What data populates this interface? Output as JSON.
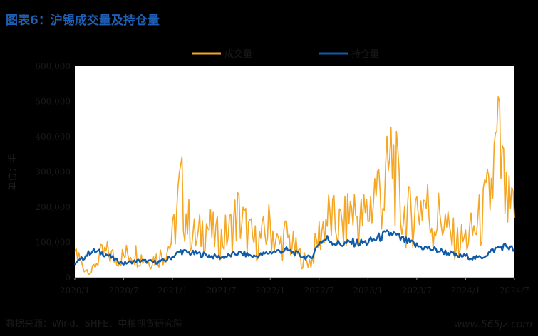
{
  "header": {
    "title": "图表6：沪锡成交量及持仓量"
  },
  "footer": {
    "source": "数据来源：Wind、SHFE、中粮期货研究院",
    "watermark": "www.565jz.com"
  },
  "colors": {
    "volume": "#F5A623",
    "open_interest": "#0F5BAA",
    "title": "#1F5FB4"
  },
  "chart_data": {
    "type": "line",
    "ylabel": "单位：手",
    "ylim": [
      0,
      600000
    ],
    "yticks": [
      "0",
      "100,000",
      "200,000",
      "300,000",
      "400,000",
      "500,000",
      "600,000"
    ],
    "xlim": [
      "2020/1",
      "2024/7"
    ],
    "xticks": [
      "2020/1",
      "2020/7",
      "2021/1",
      "2021/7",
      "2022/1",
      "2022/7",
      "2023/1",
      "2023/7",
      "2024/1",
      "2024/7"
    ],
    "legend_position": "top-center",
    "grid": false,
    "series": [
      {
        "name": "成交量",
        "color": "#F5A623",
        "points": [
          [
            "2020/1",
            80000
          ],
          [
            "2020/2",
            30000
          ],
          [
            "2020/3",
            15000
          ],
          [
            "2020/4",
            60000
          ],
          [
            "2020/5",
            70000
          ],
          [
            "2020/6",
            55000
          ],
          [
            "2020/7",
            60000
          ],
          [
            "2020/8",
            75000
          ],
          [
            "2020/9",
            60000
          ],
          [
            "2020/10",
            50000
          ],
          [
            "2020/11",
            55000
          ],
          [
            "2020/12",
            70000
          ],
          [
            "2021/1",
            110000
          ],
          [
            "2021/2",
            250000
          ],
          [
            "2021/3",
            150000
          ],
          [
            "2021/4",
            100000
          ],
          [
            "2021/5",
            160000
          ],
          [
            "2021/6",
            120000
          ],
          [
            "2021/7",
            110000
          ],
          [
            "2021/8",
            130000
          ],
          [
            "2021/9",
            180000
          ],
          [
            "2021/10",
            140000
          ],
          [
            "2021/11",
            100000
          ],
          [
            "2021/12",
            110000
          ],
          [
            "2022/1",
            150000
          ],
          [
            "2022/2",
            90000
          ],
          [
            "2022/3",
            120000
          ],
          [
            "2022/4",
            80000
          ],
          [
            "2022/5",
            50000
          ],
          [
            "2022/6",
            45000
          ],
          [
            "2022/7",
            120000
          ],
          [
            "2022/8",
            170000
          ],
          [
            "2022/9",
            150000
          ],
          [
            "2022/10",
            140000
          ],
          [
            "2022/11",
            200000
          ],
          [
            "2022/12",
            160000
          ],
          [
            "2023/1",
            180000
          ],
          [
            "2023/2",
            260000
          ],
          [
            "2023/3",
            230000
          ],
          [
            "2023/4",
            350000
          ],
          [
            "2023/5",
            190000
          ],
          [
            "2023/6",
            170000
          ],
          [
            "2023/7",
            200000
          ],
          [
            "2023/8",
            220000
          ],
          [
            "2023/9",
            150000
          ],
          [
            "2023/10",
            180000
          ],
          [
            "2023/11",
            120000
          ],
          [
            "2023/12",
            100000
          ],
          [
            "2024/1",
            110000
          ],
          [
            "2024/2",
            130000
          ],
          [
            "2024/3",
            170000
          ],
          [
            "2024/4",
            230000
          ],
          [
            "2024/5",
            380000
          ],
          [
            "2024/6",
            200000
          ],
          [
            "2024/7",
            170000
          ]
        ]
      },
      {
        "name": "持仓量",
        "color": "#0F5BAA",
        "points": [
          [
            "2020/1",
            40000
          ],
          [
            "2020/2",
            55000
          ],
          [
            "2020/3",
            75000
          ],
          [
            "2020/4",
            72000
          ],
          [
            "2020/5",
            65000
          ],
          [
            "2020/6",
            50000
          ],
          [
            "2020/7",
            40000
          ],
          [
            "2020/8",
            45000
          ],
          [
            "2020/9",
            48000
          ],
          [
            "2020/10",
            46000
          ],
          [
            "2020/11",
            44000
          ],
          [
            "2020/12",
            48000
          ],
          [
            "2021/1",
            60000
          ],
          [
            "2021/2",
            75000
          ],
          [
            "2021/3",
            70000
          ],
          [
            "2021/4",
            68000
          ],
          [
            "2021/5",
            65000
          ],
          [
            "2021/6",
            60000
          ],
          [
            "2021/7",
            58000
          ],
          [
            "2021/8",
            62000
          ],
          [
            "2021/9",
            70000
          ],
          [
            "2021/10",
            66000
          ],
          [
            "2021/11",
            60000
          ],
          [
            "2021/12",
            65000
          ],
          [
            "2022/1",
            72000
          ],
          [
            "2022/2",
            75000
          ],
          [
            "2022/3",
            78000
          ],
          [
            "2022/4",
            70000
          ],
          [
            "2022/5",
            60000
          ],
          [
            "2022/6",
            55000
          ],
          [
            "2022/7",
            100000
          ],
          [
            "2022/8",
            110000
          ],
          [
            "2022/9",
            98000
          ],
          [
            "2022/10",
            95000
          ],
          [
            "2022/11",
            100000
          ],
          [
            "2022/12",
            98000
          ],
          [
            "2023/1",
            100000
          ],
          [
            "2023/2",
            110000
          ],
          [
            "2023/3",
            120000
          ],
          [
            "2023/4",
            125000
          ],
          [
            "2023/5",
            110000
          ],
          [
            "2023/6",
            100000
          ],
          [
            "2023/7",
            90000
          ],
          [
            "2023/8",
            85000
          ],
          [
            "2023/9",
            80000
          ],
          [
            "2023/10",
            75000
          ],
          [
            "2023/11",
            70000
          ],
          [
            "2023/12",
            60000
          ],
          [
            "2024/1",
            62000
          ],
          [
            "2024/2",
            55000
          ],
          [
            "2024/3",
            58000
          ],
          [
            "2024/4",
            72000
          ],
          [
            "2024/5",
            85000
          ],
          [
            "2024/6",
            90000
          ],
          [
            "2024/7",
            78000
          ]
        ]
      }
    ]
  }
}
